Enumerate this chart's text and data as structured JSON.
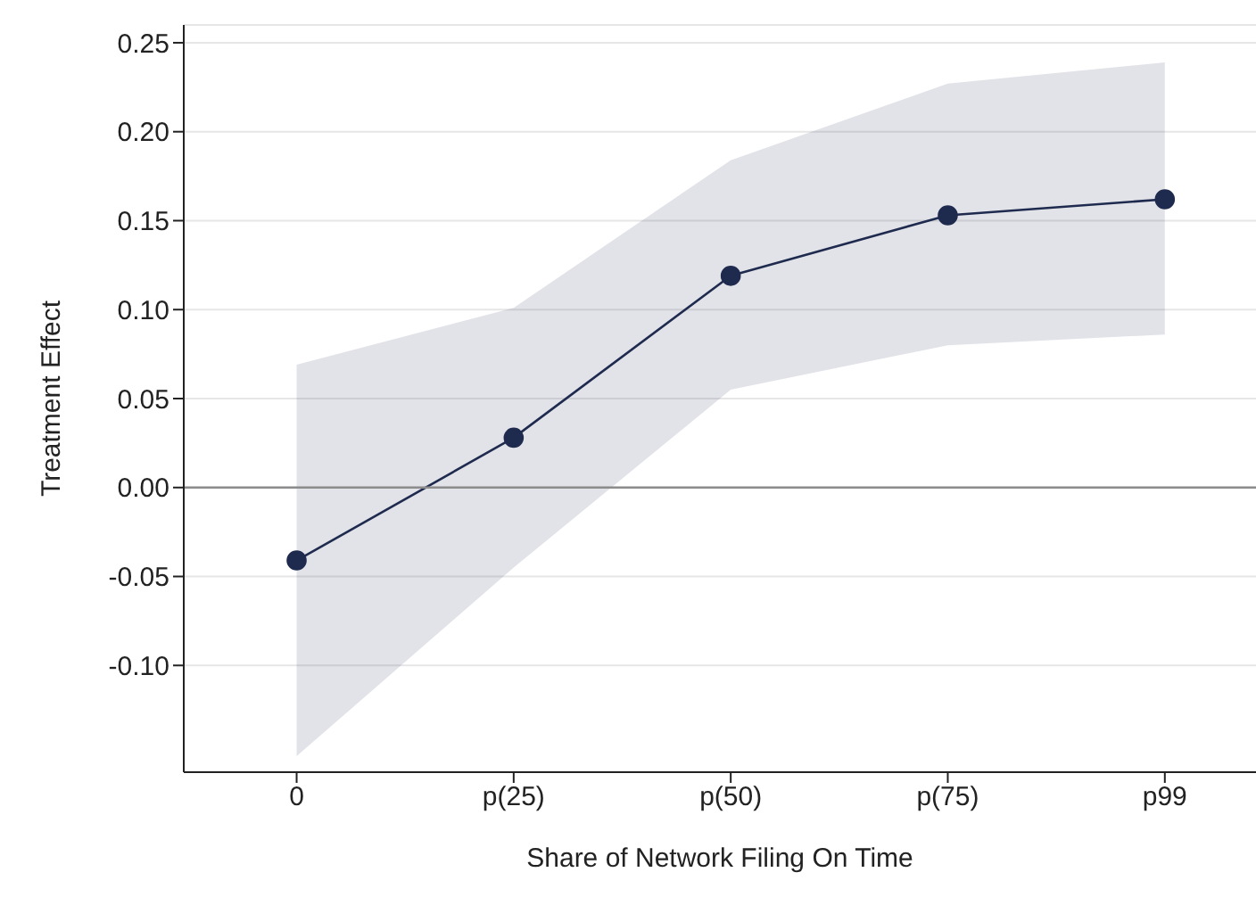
{
  "chart_data": {
    "type": "line",
    "xlabel": "Share of Network Filing On Time",
    "ylabel": "Treatment Effect",
    "categories": [
      "0",
      "p(25)",
      "p(50)",
      "p(75)",
      "p99"
    ],
    "series": [
      {
        "color": "#1f2a4f",
        "values": [
          -0.041,
          0.028,
          0.119,
          0.153,
          0.162
        ],
        "lower": [
          -0.151,
          -0.045,
          0.055,
          0.08,
          0.086
        ],
        "upper": [
          0.069,
          0.101,
          0.184,
          0.227,
          0.239
        ]
      }
    ],
    "ylim": [
      -0.16,
      0.26
    ],
    "yticks": [
      {
        "value": -0.1,
        "label": "-0.10"
      },
      {
        "value": -0.05,
        "label": "-0.05"
      },
      {
        "value": 0,
        "label": "0.00"
      },
      {
        "value": 0.05,
        "label": "0.05"
      },
      {
        "value": 0.1,
        "label": "0.10"
      },
      {
        "value": 0.15,
        "label": "0.15"
      },
      {
        "value": 0.2,
        "label": "0.20"
      },
      {
        "value": 0.25,
        "label": "0.25"
      }
    ],
    "grid": "y",
    "marker": "circle",
    "line_style": "solid",
    "ref_lines": [
      {
        "axis": "y",
        "value": 0,
        "color": "#8c8c8c"
      }
    ]
  }
}
